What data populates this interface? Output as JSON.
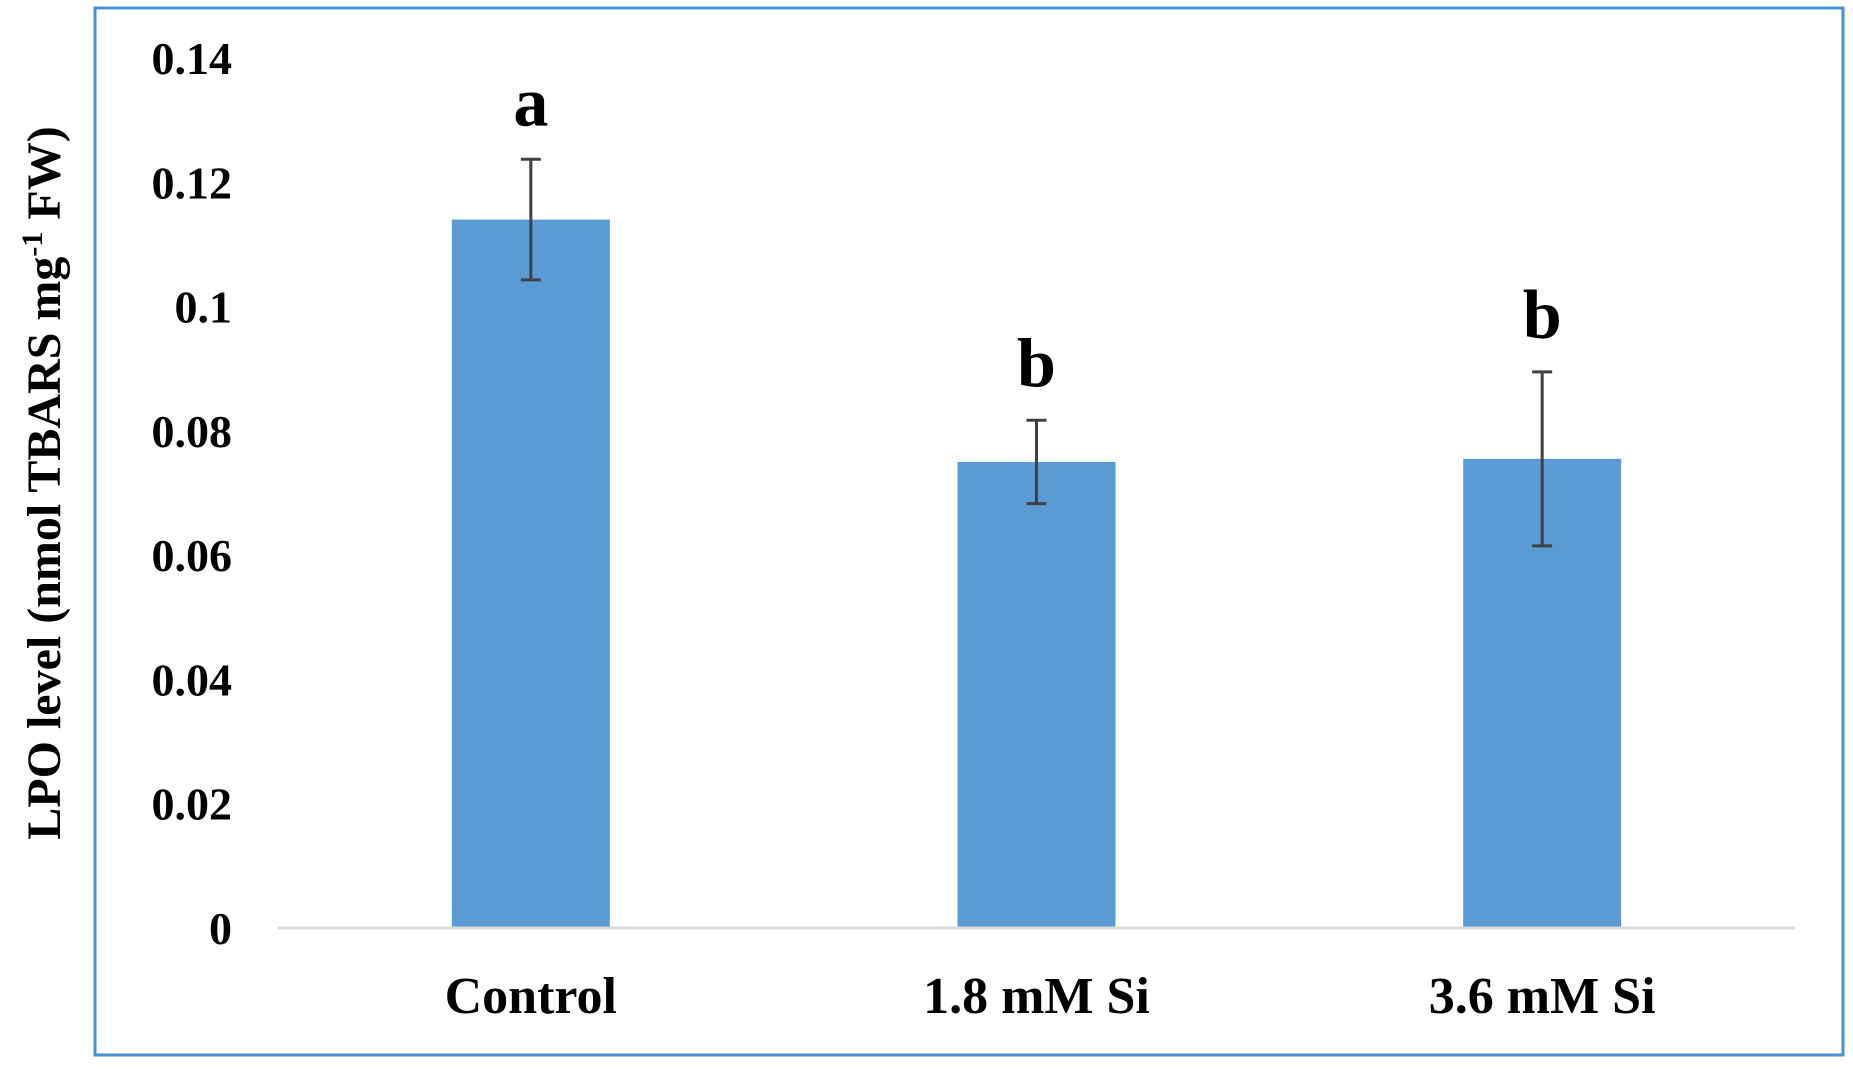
{
  "chart_data": {
    "type": "bar",
    "title": "",
    "xlabel": "",
    "ylabel": {
      "prefix": "LPO level (nmol  TBARS mg",
      "superscript": "-1",
      "suffix": " FW)"
    },
    "categories": [
      "Control",
      "1.8 mM Si",
      "3.6 mM Si"
    ],
    "series": [
      {
        "values": [
          0.114,
          0.075,
          0.0755
        ],
        "errors": [
          0.0097,
          0.0067,
          0.014
        ],
        "significance": [
          "a",
          "b",
          "b"
        ]
      }
    ],
    "ylim": [
      0,
      0.14
    ],
    "yticks": [
      0,
      0.02,
      0.04,
      0.06,
      0.08,
      0.1,
      0.12,
      0.14
    ],
    "ytick_labels": [
      "0",
      "0.02",
      "0.04",
      "0.06",
      "0.08",
      "0.1",
      "0.12",
      "0.14"
    ],
    "grid": false,
    "legend": "none"
  },
  "colors": {
    "bar": "#5B9BD5",
    "frame": "#4A90D9",
    "axis": "#D9D9D9",
    "error_bar": "#404040"
  }
}
